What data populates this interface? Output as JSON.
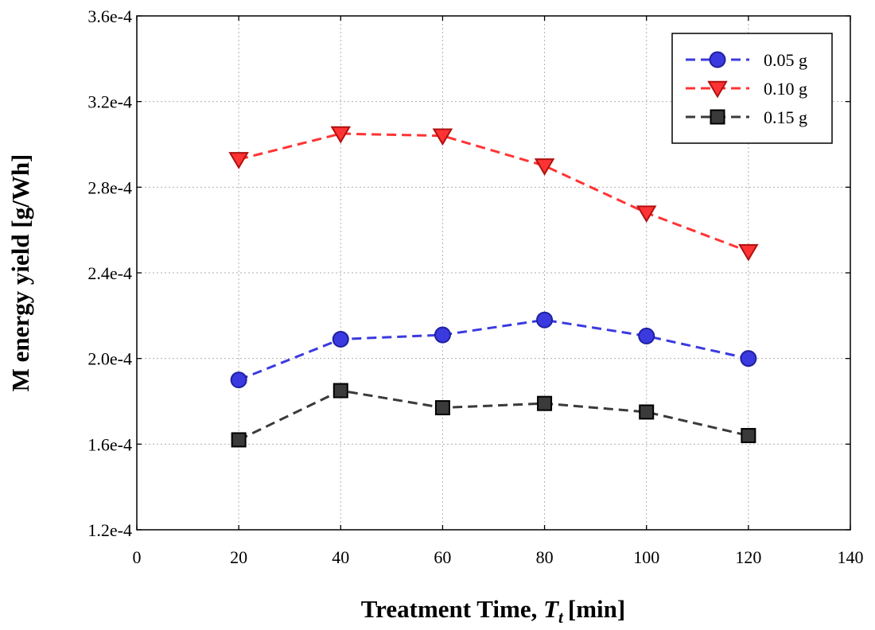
{
  "chart_data": {
    "type": "line",
    "title": "",
    "xlabel": "Treatment Time,",
    "xlabel_var": "T",
    "xlabel_sub": "t",
    "xlabel_unit": "[min]",
    "ylabel": "M energy yield [g/Wh]",
    "xlim": [
      0,
      140
    ],
    "ylim": [
      0.00012,
      0.00036
    ],
    "x_ticks": [
      0,
      20,
      40,
      60,
      80,
      100,
      120,
      140
    ],
    "x_tick_labels": [
      "0",
      "20",
      "40",
      "60",
      "80",
      "100",
      "120",
      "140"
    ],
    "y_ticks": [
      0.00012,
      0.00016,
      0.0002,
      0.00024,
      0.00028,
      0.00032,
      0.00036
    ],
    "y_tick_labels": [
      "1.2e-4",
      "1.6e-4",
      "2.0e-4",
      "2.4e-4",
      "2.8e-4",
      "3.2e-4",
      "3.6e-4"
    ],
    "grid": true,
    "legend_position": "top-right",
    "x": [
      20,
      40,
      60,
      80,
      100,
      120
    ],
    "series": [
      {
        "name": "0.05 g",
        "marker": "circle",
        "color": "#3a3ae0",
        "stroke": "#2020a0",
        "values": [
          0.00019,
          0.000209,
          0.000211,
          0.000218,
          0.0002105,
          0.0002
        ]
      },
      {
        "name": "0.10 g",
        "marker": "triangle-down",
        "color": "#ff3333",
        "stroke": "#b01010",
        "values": [
          0.000293,
          0.000305,
          0.000304,
          0.00029,
          0.000268,
          0.00025
        ]
      },
      {
        "name": "0.15 g",
        "marker": "square",
        "color": "#3a3a3a",
        "stroke": "#000000",
        "values": [
          0.000162,
          0.000185,
          0.000177,
          0.000179,
          0.000175,
          0.000164
        ]
      }
    ]
  }
}
